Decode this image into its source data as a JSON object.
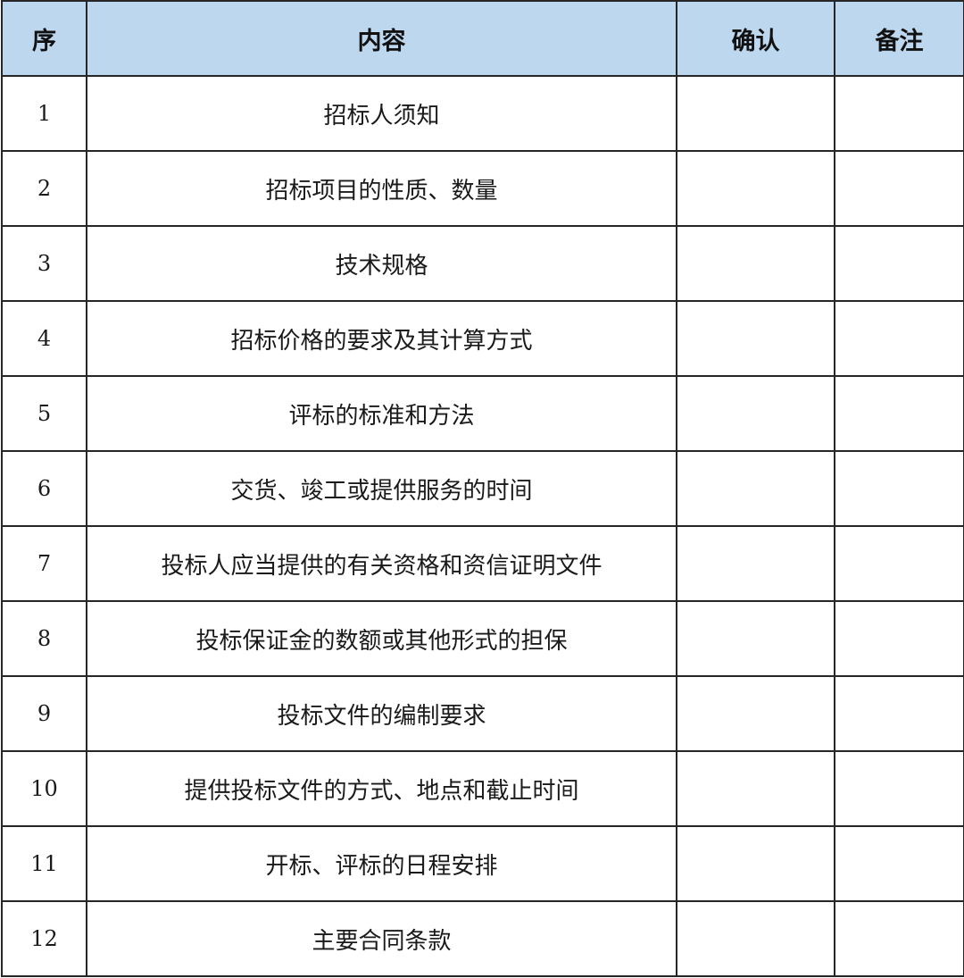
{
  "header_color": "#BDD7EE",
  "headers": [
    "序",
    "内容",
    "确认",
    "备注"
  ],
  "rows": [
    {
      "no": "1",
      "content": "招标人须知",
      "confirm": "",
      "note": ""
    },
    {
      "no": "2",
      "content": "招标项目的性质、数量",
      "confirm": "",
      "note": ""
    },
    {
      "no": "3",
      "content": "技术规格",
      "confirm": "",
      "note": ""
    },
    {
      "no": "4",
      "content": "招标价格的要求及其计算方式",
      "confirm": "",
      "note": ""
    },
    {
      "no": "5",
      "content": "评标的标准和方法",
      "confirm": "",
      "note": ""
    },
    {
      "no": "6",
      "content": "交货、竣工或提供服务的时间",
      "confirm": "",
      "note": ""
    },
    {
      "no": "7",
      "content": "投标人应当提供的有关资格和资信证明文件",
      "confirm": "",
      "note": ""
    },
    {
      "no": "8",
      "content": "投标保证金的数额或其他形式的担保",
      "confirm": "",
      "note": ""
    },
    {
      "no": "9",
      "content": "投标文件的编制要求",
      "confirm": "",
      "note": ""
    },
    {
      "no": "10",
      "content": "提供投标文件的方式、地点和截止时间",
      "confirm": "",
      "note": ""
    },
    {
      "no": "11",
      "content": "开标、评标的日程安排",
      "confirm": "",
      "note": ""
    },
    {
      "no": "12",
      "content": "主要合同条款",
      "confirm": "",
      "note": ""
    }
  ]
}
